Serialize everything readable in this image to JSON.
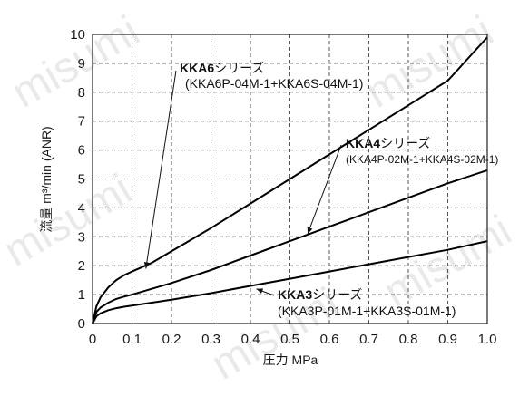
{
  "watermark": "misumi",
  "chart_data": {
    "type": "line",
    "xlabel": "圧力 MPa",
    "ylabel": "流量 m³/min (ANR)",
    "xlim": [
      0,
      1.0
    ],
    "ylim": [
      0,
      10
    ],
    "xticks": [
      "0",
      "0.1",
      "0.2",
      "0.3",
      "0.4",
      "0.5",
      "0.6",
      "0.7",
      "0.8",
      "0.9",
      "1.0"
    ],
    "yticks": [
      "0",
      "1",
      "2",
      "3",
      "4",
      "5",
      "6",
      "7",
      "8",
      "9",
      "10"
    ],
    "grid": true,
    "series": [
      {
        "name": "KKA6シリーズ",
        "x": [
          0,
          0.01,
          0.02,
          0.04,
          0.06,
          0.08,
          0.1,
          0.12,
          0.15,
          0.2,
          0.3,
          0.4,
          0.5,
          0.6,
          0.7,
          0.8,
          0.9,
          1.0
        ],
        "values": [
          0,
          0.6,
          0.9,
          1.25,
          1.5,
          1.67,
          1.8,
          1.92,
          2.1,
          2.5,
          3.3,
          4.15,
          5.0,
          5.85,
          6.7,
          7.55,
          8.4,
          9.9
        ]
      },
      {
        "name": "KKA4シリーズ",
        "x": [
          0,
          0.01,
          0.02,
          0.04,
          0.06,
          0.08,
          0.1,
          0.15,
          0.2,
          0.3,
          0.4,
          0.5,
          0.6,
          0.7,
          0.8,
          0.9,
          1.0
        ],
        "values": [
          0,
          0.4,
          0.55,
          0.72,
          0.85,
          0.93,
          1.0,
          1.2,
          1.4,
          1.85,
          2.35,
          2.85,
          3.35,
          3.85,
          4.35,
          4.85,
          5.3
        ]
      },
      {
        "name": "KKA3シリーズ",
        "x": [
          0,
          0.01,
          0.02,
          0.04,
          0.06,
          0.08,
          0.1,
          0.15,
          0.2,
          0.3,
          0.4,
          0.5,
          0.6,
          0.7,
          0.8,
          0.9,
          1.0
        ],
        "values": [
          0,
          0.25,
          0.35,
          0.46,
          0.53,
          0.58,
          0.62,
          0.72,
          0.82,
          1.05,
          1.3,
          1.55,
          1.8,
          2.05,
          2.3,
          2.55,
          2.85
        ]
      }
    ],
    "annotations": [
      {
        "series": "KKA6",
        "title_bold": "KKA6",
        "title_rest": "シリーズ",
        "detail": "(KKA6P-04M-1+KKA6S-04M-1)",
        "arrow_to": [
          0.135,
          1.9
        ]
      },
      {
        "series": "KKA4",
        "title_bold": "KKA4",
        "title_rest": "シリーズ",
        "detail": "(KKA4P-02M-1+KKA4S-02M-1)",
        "arrow_to": [
          0.545,
          3.1
        ]
      },
      {
        "series": "KKA3",
        "title_bold": "KKA3",
        "title_rest": "シリーズ",
        "detail": "(KKA3P-01M-1+KKA3S-01M-1)",
        "arrow_to": [
          0.415,
          1.2
        ]
      }
    ]
  }
}
